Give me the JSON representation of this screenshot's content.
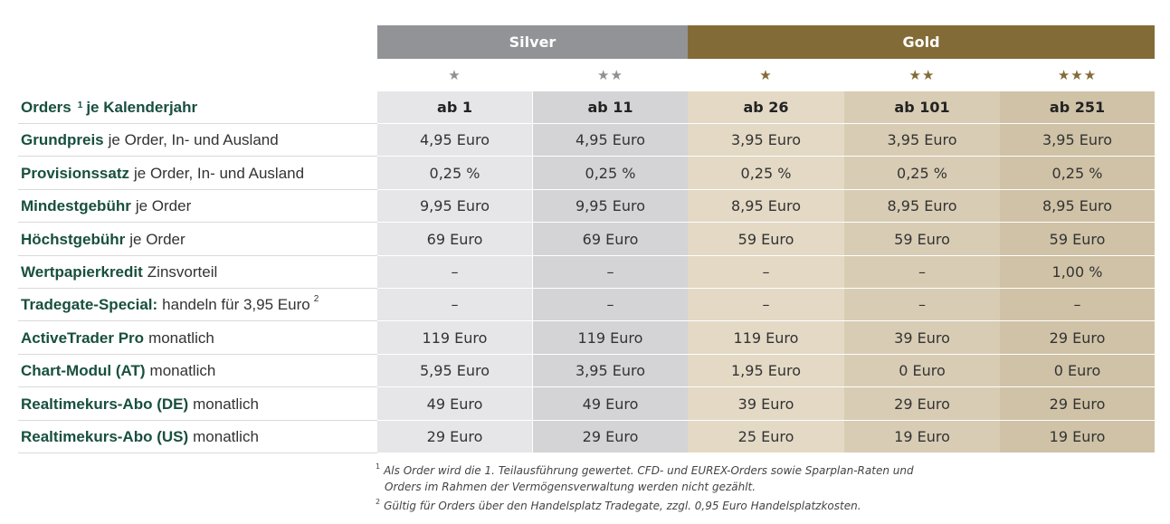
{
  "tiers": {
    "silver": "Silver",
    "gold": "Gold"
  },
  "stars": [
    "★",
    "★★",
    "★",
    "★★",
    "★★★"
  ],
  "rows": [
    {
      "bold": "Orders",
      "sup": "1",
      "bold2": "je Kalenderjahr",
      "normal": "",
      "cells": [
        "ab 1",
        "ab 11",
        "ab 26",
        "ab 101",
        "ab 251"
      ],
      "head": true
    },
    {
      "bold": "Grundpreis",
      "normal": "je Order, In- und Ausland",
      "cells": [
        "4,95 Euro",
        "4,95 Euro",
        "3,95 Euro",
        "3,95 Euro",
        "3,95 Euro"
      ]
    },
    {
      "bold": "Provisionssatz",
      "normal": "je Order, In- und Ausland",
      "cells": [
        "0,25 %",
        "0,25 %",
        "0,25 %",
        "0,25 %",
        "0,25 %"
      ]
    },
    {
      "bold": "Mindestgebühr",
      "normal": "je Order",
      "cells": [
        "9,95 Euro",
        "9,95 Euro",
        "8,95 Euro",
        "8,95 Euro",
        "8,95 Euro"
      ]
    },
    {
      "bold": "Höchstgebühr",
      "normal": "je Order",
      "cells": [
        "69 Euro",
        "69 Euro",
        "59 Euro",
        "59 Euro",
        "59 Euro"
      ]
    },
    {
      "bold": "Wertpapierkredit",
      "normal": "Zinsvorteil",
      "cells": [
        "–",
        "–",
        "–",
        "–",
        "1,00 %"
      ]
    },
    {
      "bold": "Tradegate-Special:",
      "normal": "handeln für 3,95 Euro",
      "normal_sup": "2",
      "cells": [
        "–",
        "–",
        "–",
        "–",
        "–"
      ]
    },
    {
      "bold": "ActiveTrader Pro",
      "normal": "monatlich",
      "cells": [
        "119 Euro",
        "119 Euro",
        "119 Euro",
        "39 Euro",
        "29 Euro"
      ]
    },
    {
      "bold": "Chart-Modul (AT)",
      "normal": "monatlich",
      "cells": [
        "5,95 Euro",
        "3,95 Euro",
        "1,95 Euro",
        "0 Euro",
        "0 Euro"
      ]
    },
    {
      "bold": "Realtimekurs-Abo (DE)",
      "normal": "monatlich",
      "cells": [
        "49 Euro",
        "49 Euro",
        "39 Euro",
        "29 Euro",
        "29 Euro"
      ]
    },
    {
      "bold": "Realtimekurs-Abo (US)",
      "normal": "monatlich",
      "cells": [
        "29 Euro",
        "29 Euro",
        "25 Euro",
        "19 Euro",
        "19 Euro"
      ]
    }
  ],
  "footnotes": {
    "f1_mark": "1",
    "f1_line1": "Als Order wird die 1. Teilausführung gewertet. CFD- und EUREX-Orders sowie Sparplan-Raten und",
    "f1_line2": "Orders im Rahmen der Vermögensverwaltung werden nicht gezählt.",
    "f2_mark": "2",
    "f2_line1": "Gültig für Orders über den Handelsplatz Tradegate, zzgl. 0,95 Euro Handelsplatzkosten."
  },
  "colors": {
    "silver": "#929396",
    "gold": "#836b37",
    "label": "#184f3f"
  }
}
